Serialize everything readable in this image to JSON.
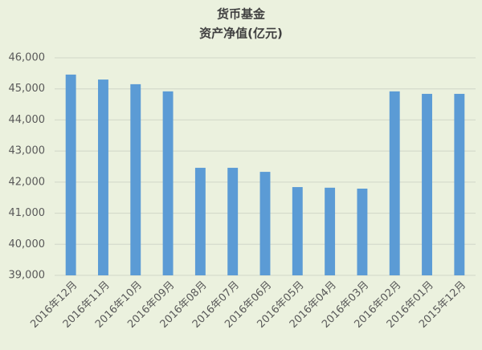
{
  "chart_data": {
    "type": "bar",
    "title": "货币基金",
    "subtitle": "资产净值(亿元)",
    "categories": [
      "2016年12月",
      "2016年11月",
      "2016年10月",
      "2016年09月",
      "2016年08月",
      "2016年07月",
      "2016年06月",
      "2016年05月",
      "2016年04月",
      "2016年03月",
      "2016年02月",
      "2016年01月",
      "2015年12月"
    ],
    "values": [
      45460,
      45300,
      45150,
      44920,
      42460,
      42460,
      42330,
      41840,
      41820,
      41790,
      44920,
      44840,
      44840
    ],
    "color": "#5b9bd5",
    "ylim": [
      39000,
      46000
    ],
    "yticks": [
      {
        "value": 39000,
        "label": "39,000"
      },
      {
        "value": 40000,
        "label": "40,000"
      },
      {
        "value": 41000,
        "label": "41,000"
      },
      {
        "value": 42000,
        "label": "42,000"
      },
      {
        "value": 43000,
        "label": "43,000"
      },
      {
        "value": 44000,
        "label": "44,000"
      },
      {
        "value": 45000,
        "label": "45,000"
      },
      {
        "value": 46000,
        "label": "46,000"
      }
    ],
    "grid": true
  }
}
